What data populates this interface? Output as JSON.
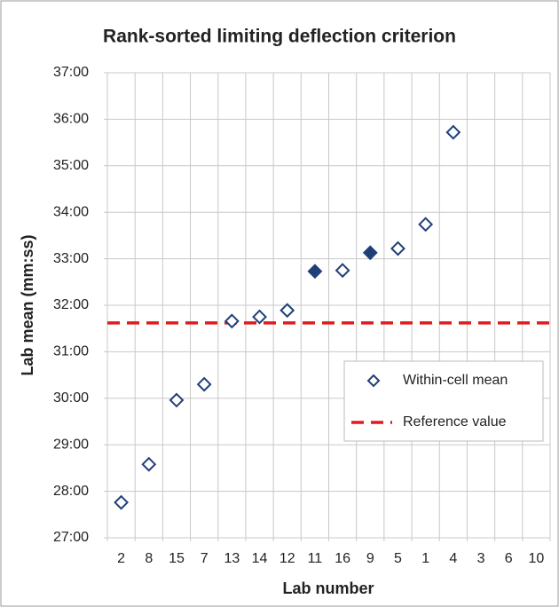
{
  "chart_data": {
    "type": "scatter",
    "title": "Rank-sorted limiting deflection criterion",
    "xlabel": "Lab number",
    "ylabel": "Lab mean (mm:ss)",
    "categories": [
      "2",
      "8",
      "15",
      "7",
      "13",
      "14",
      "12",
      "11",
      "16",
      "9",
      "5",
      "1",
      "4",
      "3",
      "6",
      "10"
    ],
    "series": [
      {
        "name": "Within-cell mean",
        "color": "#1f3f7a",
        "marker": "diamond",
        "values": [
          27.76,
          28.58,
          29.96,
          30.3,
          31.66,
          31.75,
          31.89,
          32.73,
          32.75,
          33.13,
          33.22,
          33.74,
          35.72,
          null,
          null,
          null
        ],
        "filled": [
          false,
          false,
          false,
          false,
          false,
          false,
          false,
          true,
          false,
          true,
          false,
          false,
          false,
          false,
          false,
          false
        ]
      }
    ],
    "reference": {
      "name": "Reference value",
      "color": "#e31a1c",
      "style": "dashed",
      "value": 31.62
    },
    "ylim": [
      27,
      37
    ],
    "yticks": [
      {
        "value": 27,
        "label": "27:00"
      },
      {
        "value": 28,
        "label": "28:00"
      },
      {
        "value": 29,
        "label": "29:00"
      },
      {
        "value": 30,
        "label": "30:00"
      },
      {
        "value": 31,
        "label": "31:00"
      },
      {
        "value": 32,
        "label": "32:00"
      },
      {
        "value": 33,
        "label": "33:00"
      },
      {
        "value": 34,
        "label": "34:00"
      },
      {
        "value": 35,
        "label": "35:00"
      },
      {
        "value": 36,
        "label": "36:00"
      },
      {
        "value": 37,
        "label": "37:00"
      }
    ],
    "grid": true,
    "legend": "right"
  }
}
